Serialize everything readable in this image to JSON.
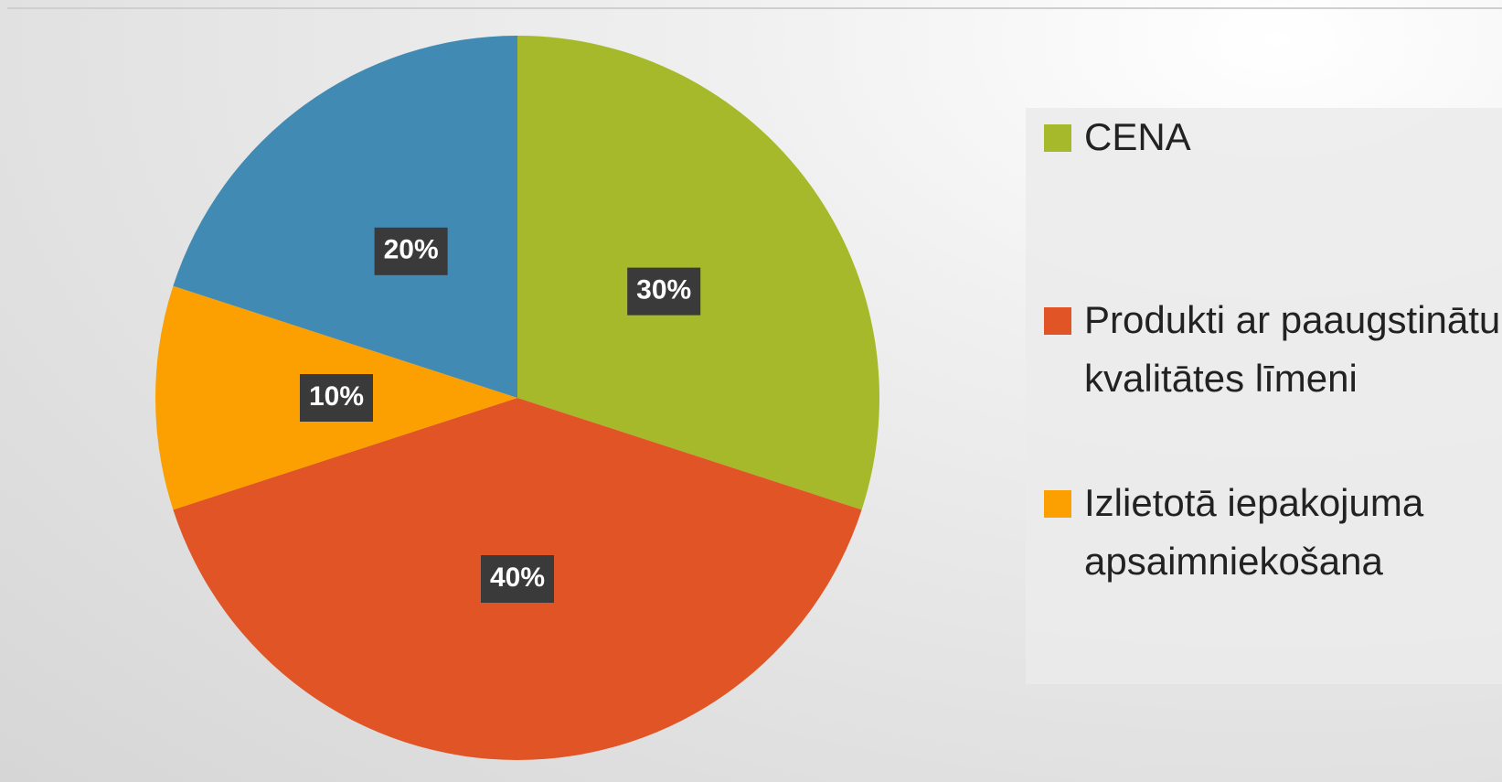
{
  "chart_data": {
    "type": "pie",
    "categories": [
      "CENA",
      "Produkti ar paaugstinātu kvalitātes līmeni",
      "Izlietotā iepakojuma apsaimniekošana",
      null
    ],
    "values": [
      30,
      40,
      10,
      20
    ],
    "value_labels": [
      "30%",
      "40%",
      "10%",
      "20%"
    ],
    "colors": [
      "#a5b92a",
      "#e05426",
      "#fba000",
      "#418ab3"
    ],
    "legend": "right"
  }
}
